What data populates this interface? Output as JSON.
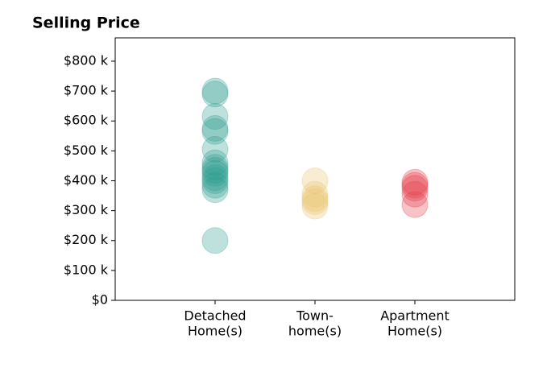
{
  "chart_data": {
    "type": "strip",
    "title": "Selling Price",
    "categories": [
      [
        "Detached",
        "Home(s)"
      ],
      [
        "Town-",
        "home(s)"
      ],
      [
        "Apartment",
        "Home(s)"
      ]
    ],
    "values": [
      [
        700,
        690,
        615,
        575,
        565,
        505,
        460,
        445,
        435,
        425,
        410,
        400,
        385,
        370,
        200
      ],
      [
        400,
        355,
        340,
        330,
        315
      ],
      [
        395,
        385,
        375,
        355,
        320
      ]
    ],
    "colors": [
      "#2a9d8f",
      "#e9c46a",
      "#e63946"
    ],
    "opacity": 0.3,
    "xlim": [
      -1,
      3
    ],
    "ylim": [
      0,
      878
    ],
    "yticks": [
      {
        "value": 0,
        "label": "$0"
      },
      {
        "value": 100,
        "label": "$100 k"
      },
      {
        "value": 200,
        "label": "$200 k"
      },
      {
        "value": 300,
        "label": "$300 k"
      },
      {
        "value": 400,
        "label": "$400 k"
      },
      {
        "value": 500,
        "label": "$500 k"
      },
      {
        "value": 600,
        "label": "$600 k"
      },
      {
        "value": 700,
        "label": "$700 k"
      },
      {
        "value": 800,
        "label": "$800 k"
      }
    ]
  }
}
